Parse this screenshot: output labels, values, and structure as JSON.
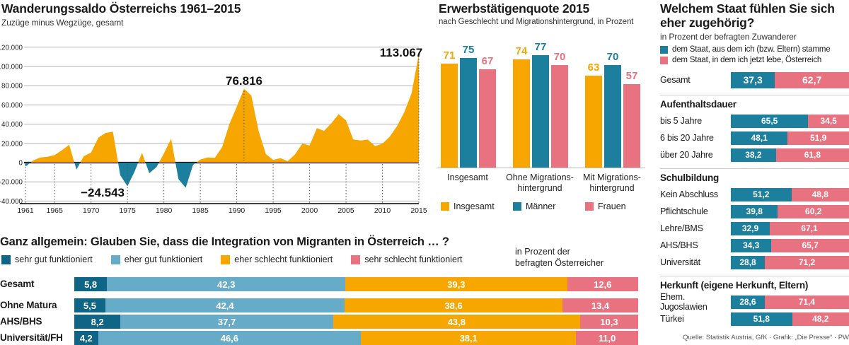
{
  "source": "Quelle: Statistik Austria, GfK · Grafik: „Die Presse“ · PW",
  "colors": {
    "orange": "#F7A600",
    "teal": "#1C7F9E",
    "dark_teal": "#0F6586",
    "light_blue": "#66ABC8",
    "pink": "#E8727F",
    "grid": "#b2b2b2",
    "axis": "#000000"
  },
  "chart_data": [
    {
      "id": "area_chart",
      "type": "area",
      "title": "Wanderungssaldo Österreichs 1961–2015",
      "subtitle": "Zuzüge minus Wegzüge, gesamt",
      "x_start": 1961,
      "values": [
        -4300,
        2000,
        5200,
        6100,
        7800,
        12900,
        18500,
        -7300,
        6700,
        10400,
        25900,
        30900,
        32200,
        -13100,
        -24543,
        -9100,
        10200,
        -11000,
        -4600,
        9400,
        24800,
        -17200,
        -26200,
        -2400,
        3200,
        5300,
        5100,
        16200,
        40300,
        58000,
        76816,
        69800,
        33000,
        8800,
        2900,
        4700,
        1500,
        8500,
        19800,
        17900,
        35900,
        33000,
        41000,
        50400,
        43900,
        24100,
        23000,
        24000,
        17200,
        19600,
        26900,
        37800,
        52400,
        72000,
        113067
      ],
      "ylim": [
        -40000,
        120000
      ],
      "ytick_labels": [
        "120.000",
        "100.000",
        "80.000",
        "60.000",
        "40.000",
        "20.000",
        "0",
        "-20.000",
        "-40.000"
      ],
      "xticks": [
        1961,
        1965,
        1970,
        1975,
        1980,
        1985,
        1990,
        1995,
        2000,
        2005,
        2010,
        2015
      ],
      "annotations": [
        {
          "label": "−24.543",
          "year": 1975,
          "value": -24543,
          "x": 176,
          "y": 278,
          "anchor": "end",
          "peak_line": false
        },
        {
          "label": "76.816",
          "year": 1991,
          "value": 76816,
          "x": 345,
          "y": 120,
          "anchor": "middle",
          "peak_line": true
        },
        {
          "label": "113.067",
          "year": 2015,
          "value": 113067,
          "x": 567,
          "y": 80,
          "anchor": "middle",
          "peak_line": true
        }
      ]
    },
    {
      "id": "employment_chart",
      "type": "bar",
      "title": "Erwerbstätigenquote 2015",
      "subtitle": "nach Geschlecht und Migrationshintergrund, in Prozent",
      "categories": [
        [
          "Insgesamt"
        ],
        [
          "Ohne Migrations-",
          "hintergrund"
        ],
        [
          "Mit Migrations-",
          "hintergrund"
        ]
      ],
      "series": [
        {
          "name": "Insgesamt",
          "color": "#F7A600",
          "values": [
            71,
            74,
            63
          ]
        },
        {
          "name": "Männer",
          "color": "#1C7F9E",
          "values": [
            75,
            77,
            70
          ]
        },
        {
          "name": "Frauen",
          "color": "#E8727F",
          "values": [
            67,
            70,
            57
          ]
        }
      ]
    },
    {
      "id": "belonging_chart",
      "type": "stacked-bar-horizontal",
      "title_lines": [
        "Welchem Staat fühlen Sie sich",
        "eher zugehörig?"
      ],
      "subtitle": "in Prozent der befragten Zuwanderer",
      "legend": [
        {
          "label": "dem Staat, aus dem ich (bzw. Eltern) stamme",
          "color": "#1C7F9E"
        },
        {
          "label": "dem Staat, in dem ich jetzt lebe, Österreich",
          "color": "#E8727F"
        }
      ],
      "gesamt": {
        "label": "Gesamt",
        "values": [
          37.3,
          62.7
        ],
        "display": [
          "37,3",
          "62,7"
        ]
      },
      "sections": [
        {
          "header": "Aufenthaltsdauer",
          "rows": [
            {
              "label": "bis 5 Jahre",
              "values": [
                65.5,
                34.5
              ],
              "display": [
                "65,5",
                "34,5"
              ]
            },
            {
              "label": "6 bis 20 Jahre",
              "values": [
                48.1,
                51.9
              ],
              "display": [
                "48,1",
                "51,9"
              ]
            },
            {
              "label": "über 20 Jahre",
              "values": [
                38.2,
                61.8
              ],
              "display": [
                "38,2",
                "61,8"
              ]
            }
          ]
        },
        {
          "header": "Schulbildung",
          "rows": [
            {
              "label": "Kein Abschluss",
              "values": [
                51.2,
                48.8
              ],
              "display": [
                "51,2",
                "48,8"
              ]
            },
            {
              "label": "Pflichtschule",
              "values": [
                39.8,
                60.2
              ],
              "display": [
                "39,8",
                "60,2"
              ]
            },
            {
              "label": "Lehre/BMS",
              "values": [
                32.9,
                67.1
              ],
              "display": [
                "32,9",
                "67,1"
              ]
            },
            {
              "label": "AHS/BHS",
              "values": [
                34.3,
                65.7
              ],
              "display": [
                "34,3",
                "65,7"
              ]
            },
            {
              "label": "Universität",
              "values": [
                28.8,
                71.2
              ],
              "display": [
                "28,8",
                "71,2"
              ]
            }
          ]
        },
        {
          "header": "Herkunft (eigene Herkunft, Eltern)",
          "rows": [
            {
              "label": "Ehem. Jugoslawien",
              "values": [
                28.6,
                71.4
              ],
              "display": [
                "28,6",
                "71,4"
              ]
            },
            {
              "label": "Türkei",
              "values": [
                51.8,
                48.2
              ],
              "display": [
                "51,8",
                "48,2"
              ]
            }
          ]
        }
      ]
    },
    {
      "id": "integration_chart",
      "type": "stacked-bar-horizontal",
      "title": "Ganz allgemein: Glauben Sie, dass die Integration von Migranten in Österreich … ?",
      "note_lines": [
        "in Prozent der",
        "befragten Österreicher"
      ],
      "legend": [
        {
          "label": "sehr gut funktioniert",
          "color": "#0F6586"
        },
        {
          "label": "eher gut funktioniert",
          "color": "#66ABC8"
        },
        {
          "label": "eher schlecht funktioniert",
          "color": "#F7A600"
        },
        {
          "label": "sehr schlecht funktioniert",
          "color": "#E8727F"
        }
      ],
      "rows": [
        {
          "label": "Gesamt",
          "values": [
            5.8,
            42.3,
            39.3,
            12.6
          ],
          "display": [
            "5,8",
            "42,3",
            "39,3",
            "12,6"
          ]
        },
        {
          "label": "Ohne Matura",
          "values": [
            5.5,
            42.4,
            38.6,
            13.4
          ],
          "display": [
            "5,5",
            "42,4",
            "38,6",
            "13,4"
          ]
        },
        {
          "label": "AHS/BHS",
          "values": [
            8.2,
            37.7,
            43.8,
            10.3
          ],
          "display": [
            "8,2",
            "37,7",
            "43,8",
            "10,3"
          ]
        },
        {
          "label": "Universität/FH",
          "values": [
            4.2,
            46.6,
            38.1,
            11.0
          ],
          "display": [
            "4,2",
            "46,6",
            "38,1",
            "11,0"
          ]
        }
      ]
    }
  ]
}
